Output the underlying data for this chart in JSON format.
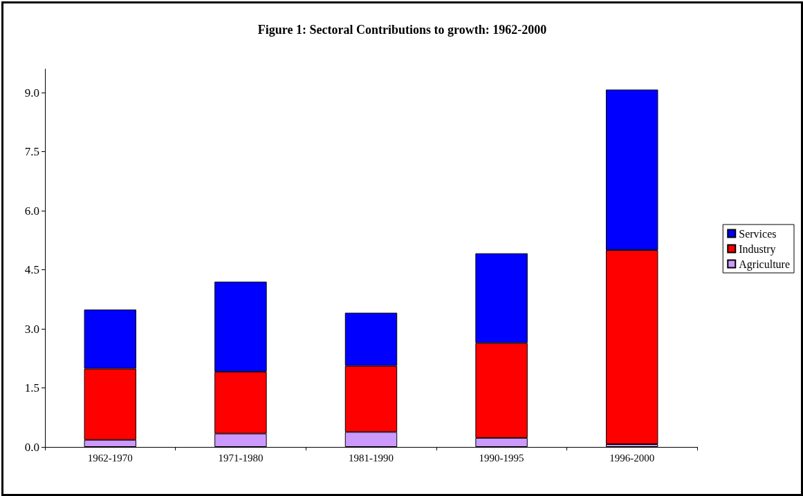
{
  "chart_data": {
    "type": "bar",
    "title": "Figure 1: Sectoral Contributions to growth: 1962-2000",
    "categories": [
      "1962-1970",
      "1971-1980",
      "1981-1990",
      "1990-1995",
      "1996-2000"
    ],
    "stacked": true,
    "series": [
      {
        "name": "Agriculture",
        "color": "#cc99ff",
        "values": [
          0.18,
          0.34,
          0.38,
          0.23,
          0.07
        ]
      },
      {
        "name": "Industry",
        "color": "#ff0000",
        "values": [
          1.81,
          1.57,
          1.68,
          2.41,
          4.93
        ]
      },
      {
        "name": "Services",
        "color": "#0000ff",
        "values": [
          1.5,
          2.29,
          1.35,
          2.28,
          4.08
        ]
      }
    ],
    "ylim": [
      0,
      9.6
    ],
    "yticks": [
      {
        "value": 0,
        "label": "0.0"
      },
      {
        "value": 1.5,
        "label": "1.5"
      },
      {
        "value": 3,
        "label": "3.0"
      },
      {
        "value": 4.5,
        "label": "4.5"
      },
      {
        "value": 6,
        "label": "6.0"
      },
      {
        "value": 7.5,
        "label": "7.5"
      },
      {
        "value": 9,
        "label": "9.0"
      }
    ],
    "grid": false,
    "legend": "right"
  }
}
